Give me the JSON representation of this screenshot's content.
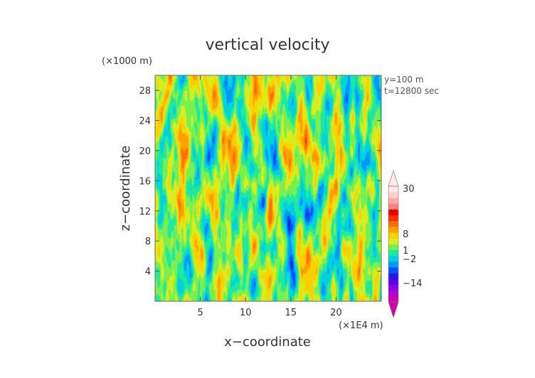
{
  "chart_data": {
    "type": "heatmap",
    "title": "vertical velocity",
    "xlabel": "x−coordinate",
    "ylabel": "z−coordinate",
    "x_unit": "(×1E4 m)",
    "y_unit": "(×1000 m)",
    "annotations": [
      "y=100 m",
      "t=12800 sec"
    ],
    "xlim": [
      0,
      25
    ],
    "ylim": [
      0,
      30
    ],
    "x_ticks": [
      5,
      10,
      15,
      20
    ],
    "y_ticks": [
      4,
      8,
      12,
      16,
      20,
      24,
      28
    ],
    "x_tick_labels": [
      "5",
      "10",
      "15",
      "20"
    ],
    "y_tick_labels": [
      "4",
      "8",
      "12",
      "16",
      "20",
      "24",
      "28"
    ],
    "colorbar": {
      "tick_labels": [
        "30",
        "8",
        "1",
        "−2",
        "−14"
      ],
      "levels": [
        {
          "color": "#d000b0"
        },
        {
          "color": "#b000d0"
        },
        {
          "color": "#8a00e0"
        },
        {
          "color": "#5a00e8"
        },
        {
          "color": "#1e1ee6"
        },
        {
          "color": "#0a50ff"
        },
        {
          "color": "#0098ff"
        },
        {
          "color": "#00d0e0"
        },
        {
          "color": "#20e8a0"
        },
        {
          "color": "#7af050"
        },
        {
          "color": "#d8ee20"
        },
        {
          "color": "#ffd000"
        },
        {
          "color": "#ffa000"
        },
        {
          "color": "#ff7000"
        },
        {
          "color": "#ff3000"
        },
        {
          "color": "#ee0000"
        },
        {
          "color": "#ff8080"
        },
        {
          "color": "#ffaaaa"
        },
        {
          "color": "#ffd0d0"
        },
        {
          "color": "#ffe8e8"
        }
      ]
    }
  }
}
